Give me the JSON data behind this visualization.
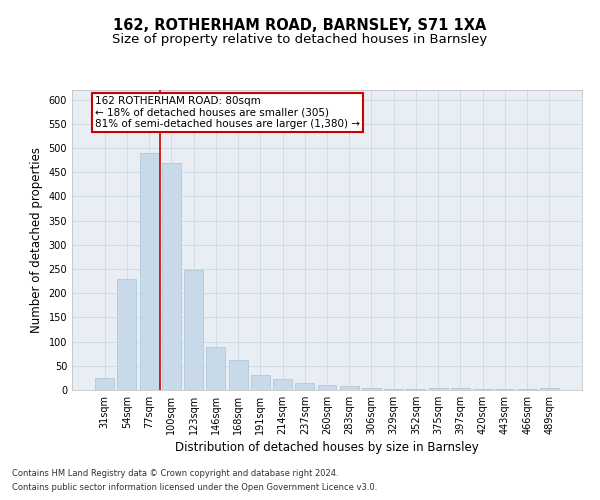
{
  "title": "162, ROTHERHAM ROAD, BARNSLEY, S71 1XA",
  "subtitle": "Size of property relative to detached houses in Barnsley",
  "xlabel": "Distribution of detached houses by size in Barnsley",
  "ylabel": "Number of detached properties",
  "categories": [
    "31sqm",
    "54sqm",
    "77sqm",
    "100sqm",
    "123sqm",
    "146sqm",
    "168sqm",
    "191sqm",
    "214sqm",
    "237sqm",
    "260sqm",
    "283sqm",
    "306sqm",
    "329sqm",
    "352sqm",
    "375sqm",
    "397sqm",
    "420sqm",
    "443sqm",
    "466sqm",
    "489sqm"
  ],
  "values": [
    25,
    230,
    490,
    470,
    248,
    88,
    62,
    30,
    22,
    14,
    10,
    9,
    5,
    3,
    3,
    5,
    5,
    3,
    3,
    3,
    4
  ],
  "bar_color": "#c8daea",
  "bar_edge_color": "#a8c4d8",
  "grid_color": "#d0dce8",
  "background_color": "#ffffff",
  "axes_background": "#e8eef4",
  "annotation_box_text": "162 ROTHERHAM ROAD: 80sqm\n← 18% of detached houses are smaller (305)\n81% of semi-detached houses are larger (1,380) →",
  "annotation_box_color": "#ffffff",
  "annotation_box_edge_color": "#cc0000",
  "red_line_color": "#cc0000",
  "red_line_x": 2.5,
  "ylim_max": 620,
  "yticks": [
    0,
    50,
    100,
    150,
    200,
    250,
    300,
    350,
    400,
    450,
    500,
    550,
    600
  ],
  "footnote_line1": "Contains HM Land Registry data © Crown copyright and database right 2024.",
  "footnote_line2": "Contains public sector information licensed under the Open Government Licence v3.0.",
  "title_fontsize": 10.5,
  "subtitle_fontsize": 9.5,
  "tick_fontsize": 7,
  "xlabel_fontsize": 8.5,
  "ylabel_fontsize": 8.5,
  "annotation_fontsize": 7.5,
  "footnote_fontsize": 6.0
}
